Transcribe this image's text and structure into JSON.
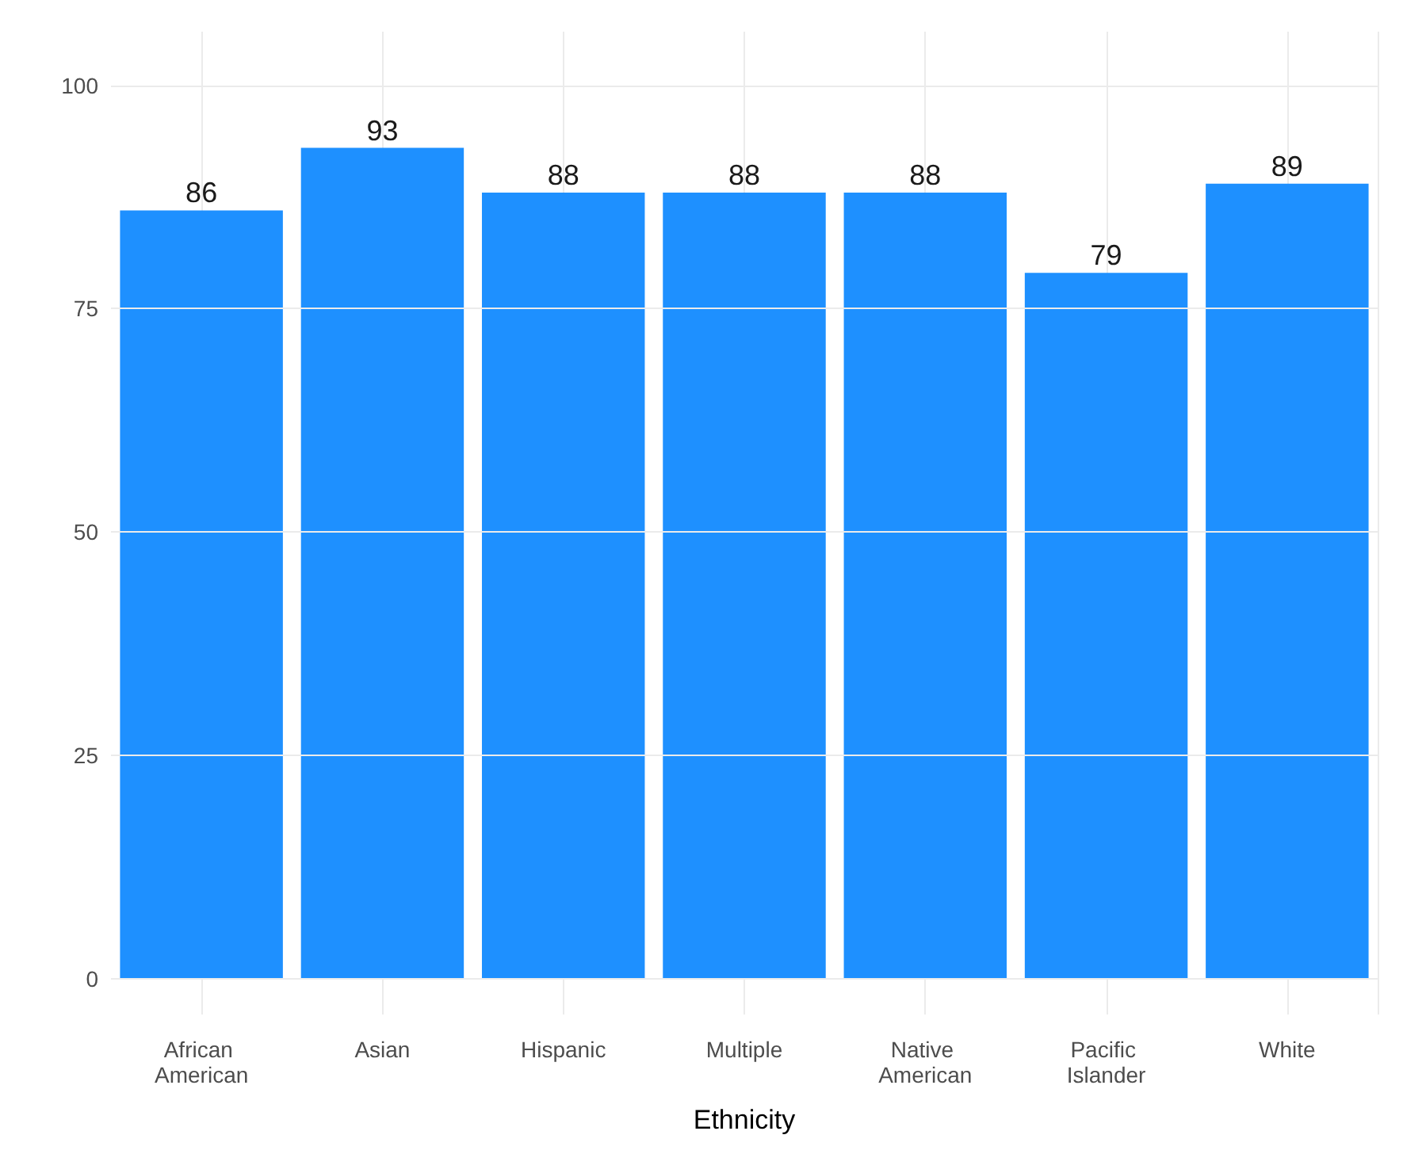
{
  "chart_data": {
    "type": "bar",
    "xlabel": "Ethnicity",
    "categories": [
      "African American",
      "Asian",
      "Hispanic",
      "Multiple",
      "Native American",
      "Pacific Islander",
      "White"
    ],
    "values": [
      86,
      93,
      88,
      88,
      88,
      79,
      89
    ],
    "color": "#1e90ff",
    "ylim": [
      -4,
      106
    ],
    "yticks": [
      0,
      25,
      50,
      75,
      100
    ],
    "grid": true,
    "data_labels": true
  }
}
